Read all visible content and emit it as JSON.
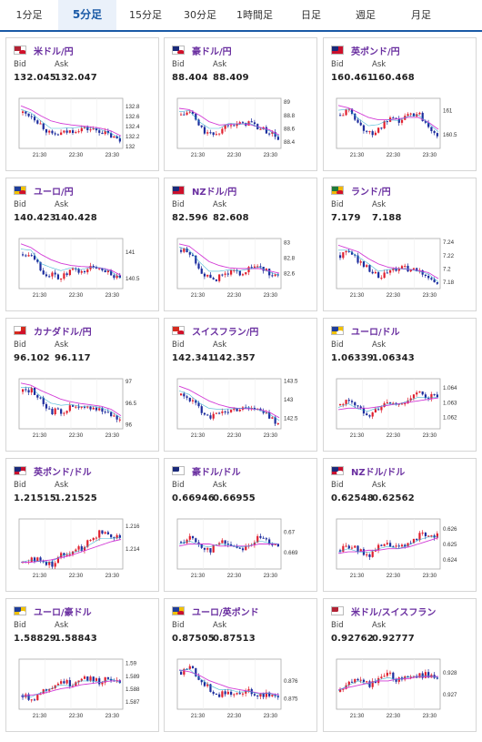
{
  "tabs": [
    {
      "id": "1m",
      "label": "1分足",
      "active": false
    },
    {
      "id": "5m",
      "label": "5分足",
      "active": true
    },
    {
      "id": "15m",
      "label": "15分足",
      "active": false
    },
    {
      "id": "30m",
      "label": "30分足",
      "active": false
    },
    {
      "id": "1h",
      "label": "1時間足",
      "active": false
    },
    {
      "id": "day",
      "label": "日足",
      "active": false
    },
    {
      "id": "week",
      "label": "週足",
      "active": false
    },
    {
      "id": "month",
      "label": "月足",
      "active": false
    }
  ],
  "labels": {
    "bid": "Bid",
    "ask": "Ask"
  },
  "colors": {
    "up": "#e0202f",
    "down": "#1d2d9e",
    "ma1": "#d23bd6",
    "ma2": "#1aa6c9",
    "tab_accent": "#1a5aa6",
    "pair_name": "#6a2fa0"
  },
  "x_tick_labels": [
    "21:30",
    "22:30",
    "23:30"
  ],
  "pairs": [
    {
      "name": "米ドル/円",
      "icon": "us-jp-flag-icon",
      "bid": "132.045",
      "ask": "132.047",
      "yticks": [
        "132.8",
        "132.6",
        "132.4",
        "132.2",
        "132"
      ],
      "ylim": [
        131.95,
        132.95
      ],
      "trend": [
        132.66,
        132.6,
        132.4,
        132.2,
        132.25,
        132.3,
        132.35,
        132.33,
        132.3,
        132.2,
        132.1
      ],
      "ma": [
        132.8,
        132.72,
        132.6,
        132.5,
        132.45,
        132.42,
        132.4,
        132.38,
        132.35,
        132.3,
        132.2
      ]
    },
    {
      "name": "豪ドル/円",
      "icon": "au-jp-flag-icon",
      "bid": "88.404",
      "ask": "88.409",
      "yticks": [
        "89",
        "88.8",
        "88.6",
        "88.4"
      ],
      "ylim": [
        88.3,
        89.05
      ],
      "trend": [
        88.8,
        88.85,
        88.6,
        88.5,
        88.55,
        88.7,
        88.65,
        88.7,
        88.6,
        88.55,
        88.45
      ],
      "ma": [
        88.9,
        88.88,
        88.8,
        88.7,
        88.65,
        88.66,
        88.67,
        88.66,
        88.62,
        88.58,
        88.5
      ]
    },
    {
      "name": "英ポンド/円",
      "icon": "gb-jp-flag-icon",
      "bid": "160.461",
      "ask": "160.468",
      "yticks": [
        "161",
        "160.5"
      ],
      "ylim": [
        160.2,
        161.25
      ],
      "trend": [
        160.9,
        161.0,
        160.7,
        160.5,
        160.6,
        160.8,
        160.75,
        160.9,
        160.95,
        160.7,
        160.5
      ],
      "ma": [
        161.1,
        161.05,
        160.95,
        160.85,
        160.8,
        160.8,
        160.82,
        160.85,
        160.85,
        160.75,
        160.6
      ]
    },
    {
      "name": "ユーロ/円",
      "icon": "eu-jp-flag-icon",
      "bid": "140.423",
      "ask": "140.428",
      "yticks": [
        "141",
        "140.5"
      ],
      "ylim": [
        140.3,
        141.25
      ],
      "trend": [
        140.95,
        140.98,
        140.6,
        140.55,
        140.5,
        140.65,
        140.6,
        140.7,
        140.7,
        140.6,
        140.45
      ],
      "ma": [
        141.15,
        141.08,
        140.95,
        140.85,
        140.78,
        140.74,
        140.72,
        140.71,
        140.69,
        140.65,
        140.55
      ]
    },
    {
      "name": "NZドル/円",
      "icon": "nz-jp-flag-icon",
      "bid": "82.596",
      "ask": "82.608",
      "yticks": [
        "83",
        "82.8",
        "82.6"
      ],
      "ylim": [
        82.4,
        83.05
      ],
      "trend": [
        82.9,
        82.85,
        82.65,
        82.5,
        82.55,
        82.62,
        82.6,
        82.65,
        82.7,
        82.6,
        82.55
      ],
      "ma": [
        82.98,
        82.95,
        82.85,
        82.75,
        82.7,
        82.67,
        82.66,
        82.66,
        82.66,
        82.63,
        82.6
      ]
    },
    {
      "name": "ランド/円",
      "icon": "za-jp-flag-icon",
      "bid": "7.179",
      "ask": "7.188",
      "yticks": [
        "7.24",
        "7.22",
        "7.2",
        "7.18"
      ],
      "ylim": [
        7.17,
        7.245
      ],
      "trend": [
        7.22,
        7.225,
        7.21,
        7.2,
        7.185,
        7.195,
        7.2,
        7.2,
        7.195,
        7.19,
        7.175
      ],
      "ma": [
        7.235,
        7.23,
        7.225,
        7.215,
        7.207,
        7.202,
        7.2,
        7.199,
        7.197,
        7.194,
        7.185
      ]
    },
    {
      "name": "カナダドル/円",
      "icon": "ca-jp-flag-icon",
      "bid": "96.102",
      "ask": "96.117",
      "yticks": [
        "97",
        "96.5",
        "96"
      ],
      "ylim": [
        95.9,
        97.05
      ],
      "trend": [
        96.75,
        96.8,
        96.5,
        96.3,
        96.3,
        96.4,
        96.35,
        96.4,
        96.35,
        96.25,
        96.1
      ],
      "ma": [
        96.95,
        96.9,
        96.78,
        96.68,
        96.58,
        96.52,
        96.48,
        96.45,
        96.42,
        96.35,
        96.2
      ]
    },
    {
      "name": "スイスフラン/円",
      "icon": "ch-jp-flag-icon",
      "bid": "142.341",
      "ask": "142.357",
      "yticks": [
        "143.5",
        "143",
        "142.5"
      ],
      "ylim": [
        142.2,
        143.55
      ],
      "trend": [
        143.1,
        143.0,
        142.7,
        142.55,
        142.6,
        142.7,
        142.75,
        142.8,
        142.7,
        142.55,
        142.35
      ],
      "ma": [
        143.35,
        143.25,
        143.1,
        142.95,
        142.85,
        142.78,
        142.75,
        142.74,
        142.72,
        142.65,
        142.5
      ]
    },
    {
      "name": "ユーロ/ドル",
      "icon": "eu-us-flag-icon",
      "bid": "1.06339",
      "ask": "1.06343",
      "yticks": [
        "1.064",
        "1.063",
        "1.062"
      ],
      "ylim": [
        1.0612,
        1.0646
      ],
      "trend": [
        1.0628,
        1.0632,
        1.0625,
        1.0622,
        1.0626,
        1.063,
        1.0628,
        1.0632,
        1.0636,
        1.0634,
        1.0634
      ],
      "ma": [
        1.0625,
        1.0626,
        1.0626,
        1.0626,
        1.0627,
        1.0628,
        1.0629,
        1.063,
        1.0631,
        1.0632,
        1.0633
      ]
    },
    {
      "name": "英ポンド/ドル",
      "icon": "gb-us-flag-icon",
      "bid": "1.21515",
      "ask": "1.21525",
      "yticks": [
        "1.216",
        "1.214"
      ],
      "ylim": [
        1.2122,
        1.2166
      ],
      "trend": [
        1.2128,
        1.2132,
        1.2128,
        1.2126,
        1.2135,
        1.2138,
        1.214,
        1.2148,
        1.2155,
        1.2152,
        1.2151
      ],
      "ma": [
        1.2128,
        1.2128,
        1.2129,
        1.213,
        1.2132,
        1.2134,
        1.2137,
        1.214,
        1.2143,
        1.2146,
        1.2148
      ]
    },
    {
      "name": "豪ドル/ドル",
      "icon": "au-us-flag-icon",
      "bid": "0.66946",
      "ask": "0.66955",
      "yticks": [
        "0.67",
        "0.669"
      ],
      "ylim": [
        0.6682,
        0.6706
      ],
      "trend": [
        0.6695,
        0.6697,
        0.6693,
        0.6691,
        0.6695,
        0.6694,
        0.6692,
        0.6693,
        0.6697,
        0.6695,
        0.6694
      ],
      "ma": [
        0.6693,
        0.6694,
        0.6694,
        0.6694,
        0.6693,
        0.6693,
        0.6693,
        0.6693,
        0.6694,
        0.6694,
        0.6694
      ]
    },
    {
      "name": "NZドル/ドル",
      "icon": "nz-us-flag-icon",
      "bid": "0.62548",
      "ask": "0.62562",
      "yticks": [
        "0.626",
        "0.625",
        "0.624"
      ],
      "ylim": [
        0.6234,
        0.6266
      ],
      "trend": [
        0.6246,
        0.6249,
        0.6245,
        0.6243,
        0.6248,
        0.625,
        0.6247,
        0.625,
        0.6255,
        0.6257,
        0.6255
      ],
      "ma": [
        0.6244,
        0.6245,
        0.6245,
        0.6246,
        0.6246,
        0.6247,
        0.6247,
        0.6248,
        0.625,
        0.6252,
        0.6254
      ]
    },
    {
      "name": "ユーロ/豪ドル",
      "icon": "eu-au-flag-icon",
      "bid": "1.58829",
      "ask": "1.58843",
      "yticks": [
        "1.59",
        "1.589",
        "1.588",
        "1.587"
      ],
      "ylim": [
        1.5864,
        1.5903
      ],
      "trend": [
        1.5875,
        1.5872,
        1.5878,
        1.5882,
        1.5886,
        1.5883,
        1.5889,
        1.5888,
        1.5885,
        1.5889,
        1.5883
      ],
      "ma": [
        1.5874,
        1.5875,
        1.5876,
        1.5878,
        1.588,
        1.5881,
        1.5883,
        1.5884,
        1.5885,
        1.5886,
        1.5886
      ]
    },
    {
      "name": "ユーロ/英ポンド",
      "icon": "eu-gb-flag-icon",
      "bid": "0.87505",
      "ask": "0.87513",
      "yticks": [
        "0.876",
        "0.875"
      ],
      "ylim": [
        0.8744,
        0.8772
      ],
      "trend": [
        0.8765,
        0.8768,
        0.876,
        0.8755,
        0.8752,
        0.8754,
        0.8752,
        0.8754,
        0.8752,
        0.8753,
        0.875
      ],
      "ma": [
        0.8766,
        0.8765,
        0.8763,
        0.876,
        0.8758,
        0.8756,
        0.8755,
        0.8754,
        0.8753,
        0.8753,
        0.8752
      ]
    },
    {
      "name": "米ドル/スイスフラン",
      "icon": "us-ch-flag-icon",
      "bid": "0.92762",
      "ask": "0.92777",
      "yticks": [
        "0.928",
        "0.927"
      ],
      "ylim": [
        0.9263,
        0.9286
      ],
      "trend": [
        0.9271,
        0.9275,
        0.9278,
        0.9274,
        0.9277,
        0.9279,
        0.9276,
        0.9279,
        0.9278,
        0.9279,
        0.9277
      ],
      "ma": [
        0.9272,
        0.9273,
        0.9274,
        0.9275,
        0.9276,
        0.9276,
        0.9277,
        0.9277,
        0.9278,
        0.9278,
        0.9278
      ]
    }
  ]
}
